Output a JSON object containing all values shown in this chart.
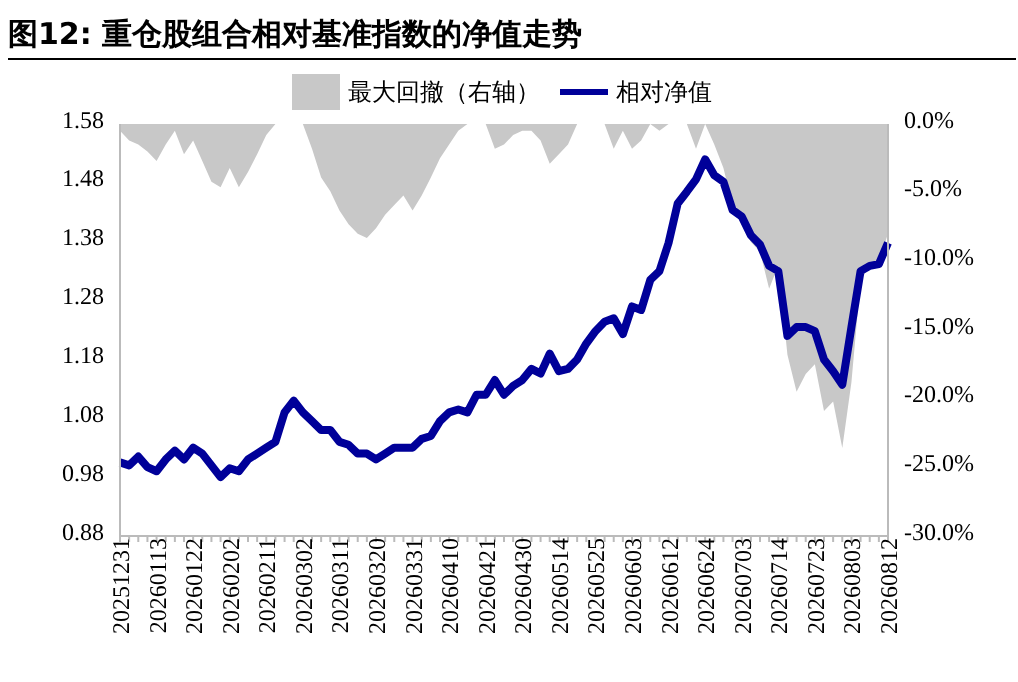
{
  "chart_data": {
    "type": "line",
    "title": "图12:  重仓股组合相对基准指数的净值走势",
    "categories": [
      "20251231",
      null,
      null,
      null,
      "20260113",
      null,
      null,
      null,
      "20260122",
      null,
      null,
      null,
      "20260202",
      null,
      null,
      null,
      "20260211",
      null,
      null,
      null,
      "20260302",
      null,
      null,
      null,
      "20260311",
      null,
      null,
      null,
      "20260320",
      null,
      null,
      null,
      "20260331",
      null,
      null,
      null,
      "20260410",
      null,
      null,
      null,
      "20260421",
      null,
      null,
      null,
      "20260430",
      null,
      null,
      null,
      "20260514",
      null,
      null,
      null,
      "20260525",
      null,
      null,
      null,
      "20260603",
      null,
      null,
      null,
      "20260612",
      null,
      null,
      null,
      "20260624",
      null,
      null,
      null,
      "20260703",
      null,
      null,
      null,
      "20260714",
      null,
      null,
      null,
      "20260723",
      null,
      null,
      null,
      "20260803",
      null,
      null,
      null,
      "20260812"
    ],
    "series": [
      {
        "name": "最大回撤（右轴）",
        "type": "area",
        "axis": "y2",
        "color": "#c8c8c8",
        "values": [
          -0.5,
          -1.2,
          -1.5,
          -2.0,
          -2.7,
          -1.5,
          -0.5,
          -2.2,
          -1.2,
          -2.7,
          -4.2,
          -4.6,
          -3.2,
          -4.6,
          -3.5,
          -2.2,
          -0.8,
          0,
          0,
          0,
          0,
          -1.8,
          -3.9,
          -4.9,
          -6.3,
          -7.3,
          -8.0,
          -8.3,
          -7.6,
          -6.6,
          -5.9,
          -5.2,
          -6.3,
          -5.2,
          -3.9,
          -2.5,
          -1.5,
          -0.5,
          0,
          0,
          0,
          -1.8,
          -1.5,
          -0.8,
          -0.5,
          -0.5,
          -1.2,
          -2.9,
          -2.2,
          -1.5,
          0,
          0,
          0,
          0,
          -1.8,
          -0.5,
          -1.8,
          -1.2,
          0,
          -0.5,
          0,
          0,
          0,
          -1.8,
          0,
          -1.5,
          -3.2,
          -5.9,
          -7.3,
          -8.6,
          -9.3,
          -12.0,
          -10.3,
          -16.8,
          -19.5,
          -18.2,
          -17.5,
          -20.9,
          -20.2,
          -23.6,
          -18.8,
          -11.4,
          -10.3,
          -10.0,
          -8.0
        ]
      },
      {
        "name": "相对净值",
        "color": "#000099",
        "values": [
          1.005,
          1.0,
          1.015,
          0.997,
          0.99,
          1.01,
          1.025,
          1.01,
          1.03,
          1.02,
          1.0,
          0.98,
          0.995,
          0.99,
          1.01,
          1.02,
          1.03,
          1.04,
          1.09,
          1.11,
          1.09,
          1.075,
          1.06,
          1.06,
          1.04,
          1.035,
          1.02,
          1.02,
          1.01,
          1.02,
          1.03,
          1.03,
          1.03,
          1.045,
          1.05,
          1.075,
          1.09,
          1.095,
          1.09,
          1.12,
          1.12,
          1.145,
          1.12,
          1.135,
          1.145,
          1.164,
          1.156,
          1.19,
          1.16,
          1.164,
          1.18,
          1.207,
          1.228,
          1.244,
          1.25,
          1.223,
          1.27,
          1.264,
          1.315,
          1.33,
          1.378,
          1.445,
          1.465,
          1.486,
          1.52,
          1.493,
          1.482,
          1.434,
          1.423,
          1.391,
          1.375,
          1.339,
          1.33,
          1.22,
          1.235,
          1.235,
          1.228,
          1.18,
          1.16,
          1.137,
          1.235,
          1.33,
          1.339,
          1.342,
          1.378
        ]
      }
    ],
    "ylim": [
      0.88,
      1.58
    ],
    "yticks": [
      0.88,
      0.98,
      1.08,
      1.18,
      1.28,
      1.38,
      1.48,
      1.58
    ],
    "y2lim": [
      -30,
      0
    ],
    "y2ticks": [
      {
        "value": -30,
        "label": "-30.0%"
      },
      {
        "value": -25,
        "label": "-25.0%"
      },
      {
        "value": -20,
        "label": "-20.0%"
      },
      {
        "value": -15,
        "label": "-15.0%"
      },
      {
        "value": -10,
        "label": "-10.0%"
      },
      {
        "value": -5,
        "label": "-5.0%"
      },
      {
        "value": 0,
        "label": "0.0%"
      }
    ],
    "legend": "top"
  }
}
